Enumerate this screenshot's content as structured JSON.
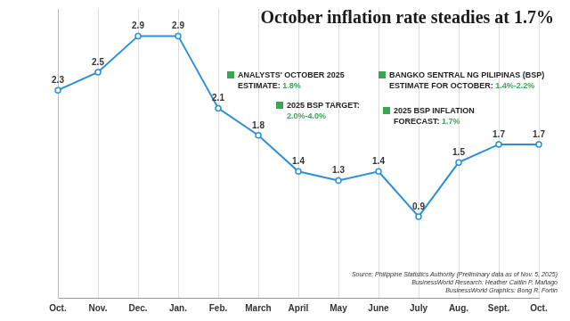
{
  "chart_data": {
    "type": "line",
    "title": "October inflation rate steadies at 1.7%",
    "categories": [
      "Oct.",
      "Nov.",
      "Dec.",
      "Jan.",
      "Feb.",
      "March",
      "April",
      "May",
      "June",
      "July",
      "Aug.",
      "Sept.",
      "Oct."
    ],
    "values": [
      2.3,
      2.5,
      2.9,
      2.9,
      2.1,
      1.8,
      1.4,
      1.3,
      1.4,
      0.9,
      1.5,
      1.7,
      1.7
    ],
    "color": "#2a8fd8",
    "marker": "circle",
    "ylim": [
      0,
      3.2
    ],
    "grid": "x",
    "tick_labels": "x",
    "data_labels": true,
    "annotations": [
      {
        "label": "ANALYSTS' OCTOBER 2025 ESTIMATE:",
        "value": "1.8%"
      },
      {
        "label": "BANGKO SENTRAL NG PILIPINAS (BSP) ESTIMATE FOR OCTOBER:",
        "value": "1.4%-2.2%"
      },
      {
        "label": "2025 BSP TARGET:",
        "value": "2.0%-4.0%"
      },
      {
        "label": "2025 BSP INFLATION FORECAST:",
        "value": "1.7%"
      }
    ],
    "source": [
      "Source: Philippine Statistics Authority (Preliminary data as of Nov. 5, 2025)",
      "BusinessWorld Research: Heather Caitlin P. Mañago",
      "BusinessWorld Graphics: Bong R. Fortin"
    ]
  }
}
